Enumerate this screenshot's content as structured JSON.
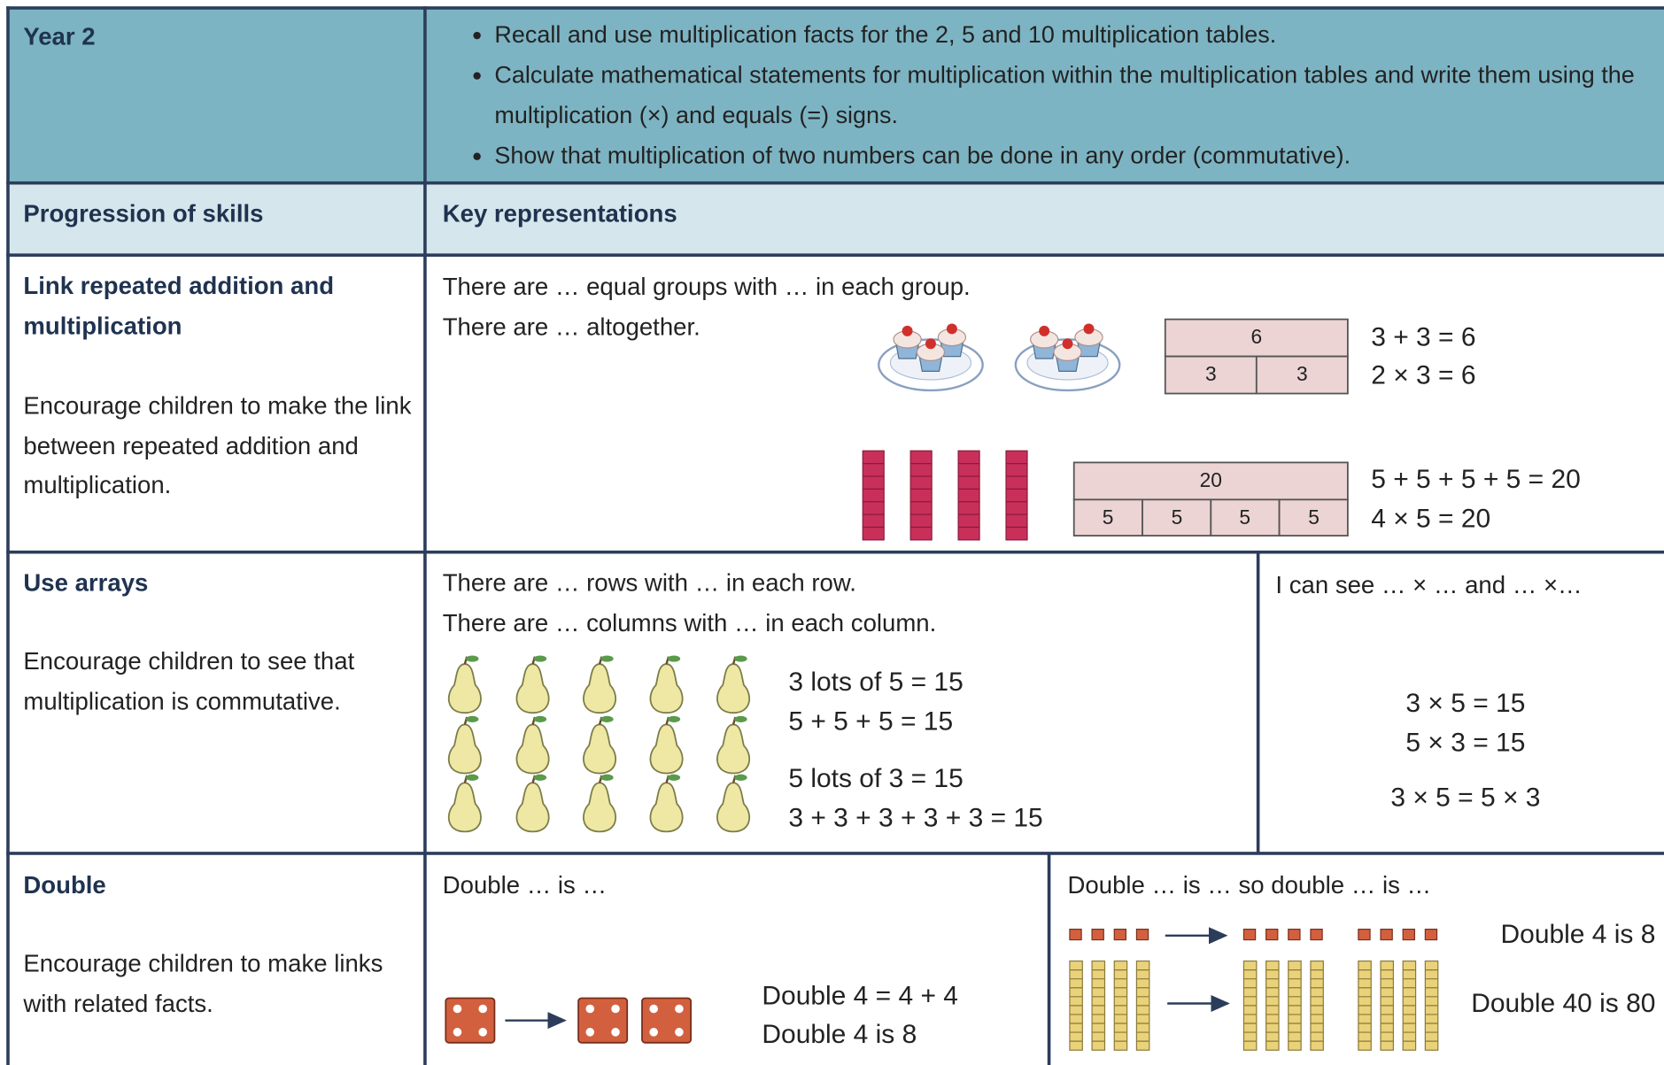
{
  "header": {
    "year": "Year 2",
    "objectives": [
      "Recall and use multiplication facts for the 2, 5 and 10 multiplication tables.",
      "Calculate mathematical statements for multiplication within the multiplication tables and write them using the multiplication (×) and equals (=) signs.",
      "Show that multiplication of two numbers can be done in any order (commutative)."
    ]
  },
  "columns": [
    "Progression of skills",
    "Key representations"
  ],
  "rows": [
    {
      "skill": "Link repeated addition and multiplication",
      "guidance": "Encourage children to make the link between repeated addition and multiplication.",
      "prompts": [
        "There are … equal groups with … in each group.",
        "There are … altogether."
      ],
      "bar_models": [
        {
          "whole": "6",
          "parts": [
            "3",
            "3"
          ],
          "equations": [
            "3 + 3 = 6",
            "2 × 3 = 6"
          ]
        },
        {
          "whole": "20",
          "parts": [
            "5",
            "5",
            "5",
            "5"
          ],
          "equations": [
            "5 + 5 + 5 + 5 = 20",
            "4 × 5 = 20"
          ]
        }
      ]
    },
    {
      "skill": "Use arrays",
      "guidance": "Encourage children to see that multiplication is commutative.",
      "prompts": [
        "There are … rows with … in each row.",
        "There are … columns with … in each column."
      ],
      "equations": [
        "3 lots of 5 = 15",
        "5 + 5 + 5 = 15",
        "5 lots of 3 = 15",
        "3 + 3 + 3 + 3 + 3 = 15"
      ],
      "side_prompt": "I can see … × … and … ×…",
      "side_equations": [
        "3 × 5 = 15",
        "5 × 3 = 15",
        "3 × 5 = 5 × 3"
      ]
    },
    {
      "skill": "Double",
      "guidance": "Encourage children to make links with related facts.",
      "prompts": [
        "Double … is …"
      ],
      "equations": [
        "Double 4 = 4 + 4",
        "Double 4 is 8"
      ],
      "side_prompt": "Double … is … so double … is …",
      "side_equations": [
        "Double 4 is 8",
        "Double 40 is 80"
      ]
    }
  ]
}
